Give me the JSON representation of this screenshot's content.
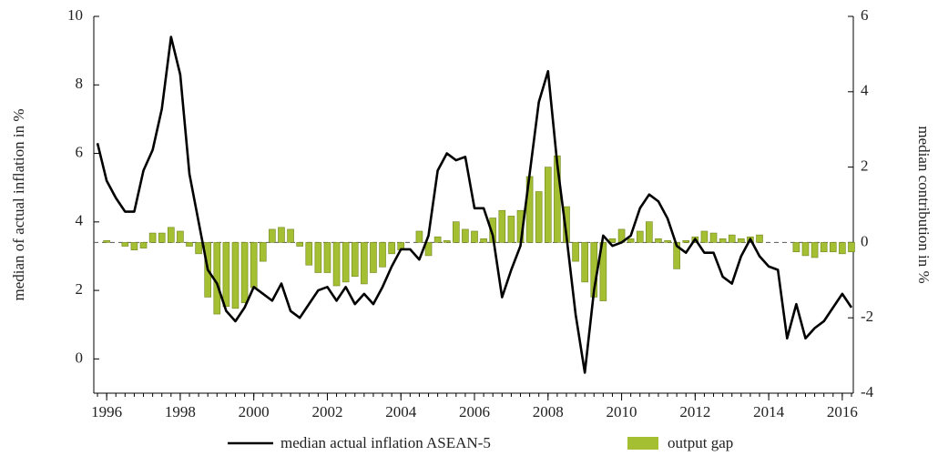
{
  "chart_data": {
    "type": "bar-line",
    "y_label": "median of actual inflation  in %",
    "y2_label": "median contribution in %",
    "x": [
      1995.75,
      1996,
      1996.25,
      1996.5,
      1996.75,
      1997,
      1997.25,
      1997.5,
      1997.75,
      1998,
      1998.25,
      1998.5,
      1998.75,
      1999,
      1999.25,
      1999.5,
      1999.75,
      2000,
      2000.25,
      2000.5,
      2000.75,
      2001,
      2001.25,
      2001.5,
      2001.75,
      2002,
      2002.25,
      2002.5,
      2002.75,
      2003,
      2003.25,
      2003.5,
      2003.75,
      2004,
      2004.25,
      2004.5,
      2004.75,
      2005,
      2005.25,
      2005.5,
      2005.75,
      2006,
      2006.25,
      2006.5,
      2006.75,
      2007,
      2007.25,
      2007.5,
      2007.75,
      2008,
      2008.25,
      2008.5,
      2008.75,
      2009,
      2009.25,
      2009.5,
      2009.75,
      2010,
      2010.25,
      2010.5,
      2010.75,
      2011,
      2011.25,
      2011.5,
      2011.75,
      2012,
      2012.25,
      2012.5,
      2012.75,
      2013,
      2013.25,
      2013.5,
      2013.75,
      2014,
      2014.25,
      2014.5,
      2014.75,
      2015,
      2015.25,
      2015.5,
      2015.75,
      2016,
      2016.25
    ],
    "series": [
      {
        "name": "median actual inflation ASEAN-5",
        "color": "#000000",
        "axis": "y",
        "kind": "line",
        "values": [
          6.3,
          5.2,
          4.7,
          4.3,
          4.3,
          5.5,
          6.1,
          7.3,
          9.4,
          8.3,
          5.4,
          4.0,
          2.6,
          2.2,
          1.4,
          1.1,
          1.5,
          2.1,
          1.9,
          1.7,
          2.2,
          1.4,
          1.2,
          1.6,
          2.0,
          2.1,
          1.7,
          2.1,
          1.6,
          1.9,
          1.6,
          2.1,
          2.7,
          3.2,
          3.2,
          2.9,
          3.6,
          5.5,
          6.0,
          5.8,
          5.9,
          4.4,
          4.4,
          3.6,
          1.8,
          2.6,
          3.3,
          5.4,
          7.5,
          8.4,
          5.7,
          3.6,
          1.3,
          -0.4,
          2.0,
          3.6,
          3.3,
          3.4,
          3.6,
          4.4,
          4.8,
          4.6,
          4.1,
          3.3,
          3.1,
          3.5,
          3.1,
          3.1,
          2.4,
          2.2,
          3.0,
          3.5,
          3.0,
          2.7,
          2.6,
          0.6,
          1.6,
          0.6,
          0.9,
          1.1,
          1.5,
          1.9,
          1.5
        ]
      },
      {
        "name": "output gap",
        "color": "#a4bf32",
        "axis": "y2",
        "kind": "bar",
        "values": [
          0.0,
          0.05,
          0,
          -0.1,
          -0.2,
          -0.15,
          0.25,
          0.25,
          0.4,
          0.3,
          -0.1,
          -0.3,
          -1.45,
          -1.9,
          -1.7,
          -1.75,
          -1.6,
          -1.2,
          -0.5,
          0.35,
          0.4,
          0.35,
          -0.1,
          -0.6,
          -0.8,
          -0.8,
          -1.15,
          -1.05,
          -0.9,
          -1.1,
          -0.8,
          -0.65,
          -0.3,
          -0.2,
          0,
          0.3,
          -0.35,
          0.15,
          0.05,
          0.55,
          0.35,
          0.3,
          0.1,
          0.65,
          0.85,
          0.7,
          0.85,
          1.75,
          1.35,
          2.0,
          2.3,
          0.95,
          -0.5,
          -1.05,
          -1.45,
          -1.55,
          0.1,
          0.35,
          0.1,
          0.3,
          0.55,
          0.1,
          0.05,
          -0.7,
          0.05,
          0.15,
          0.3,
          0.25,
          0.1,
          0.2,
          0.1,
          0.15,
          0.2,
          0,
          0,
          0,
          -0.25,
          -0.35,
          -0.4,
          -0.25,
          -0.25,
          -0.3,
          -0.25
        ]
      }
    ],
    "xlim": [
      1995.65,
      2016.3
    ],
    "xticks": [
      1996,
      1998,
      2000,
      2002,
      2004,
      2006,
      2008,
      2010,
      2012,
      2014,
      2016
    ],
    "ylim": [
      -1,
      10
    ],
    "yticks": [
      0,
      2,
      4,
      6,
      8,
      10
    ],
    "y2lim": [
      -4,
      6
    ],
    "y2ticks": [
      -4,
      -2,
      0,
      2,
      4,
      6
    ]
  }
}
